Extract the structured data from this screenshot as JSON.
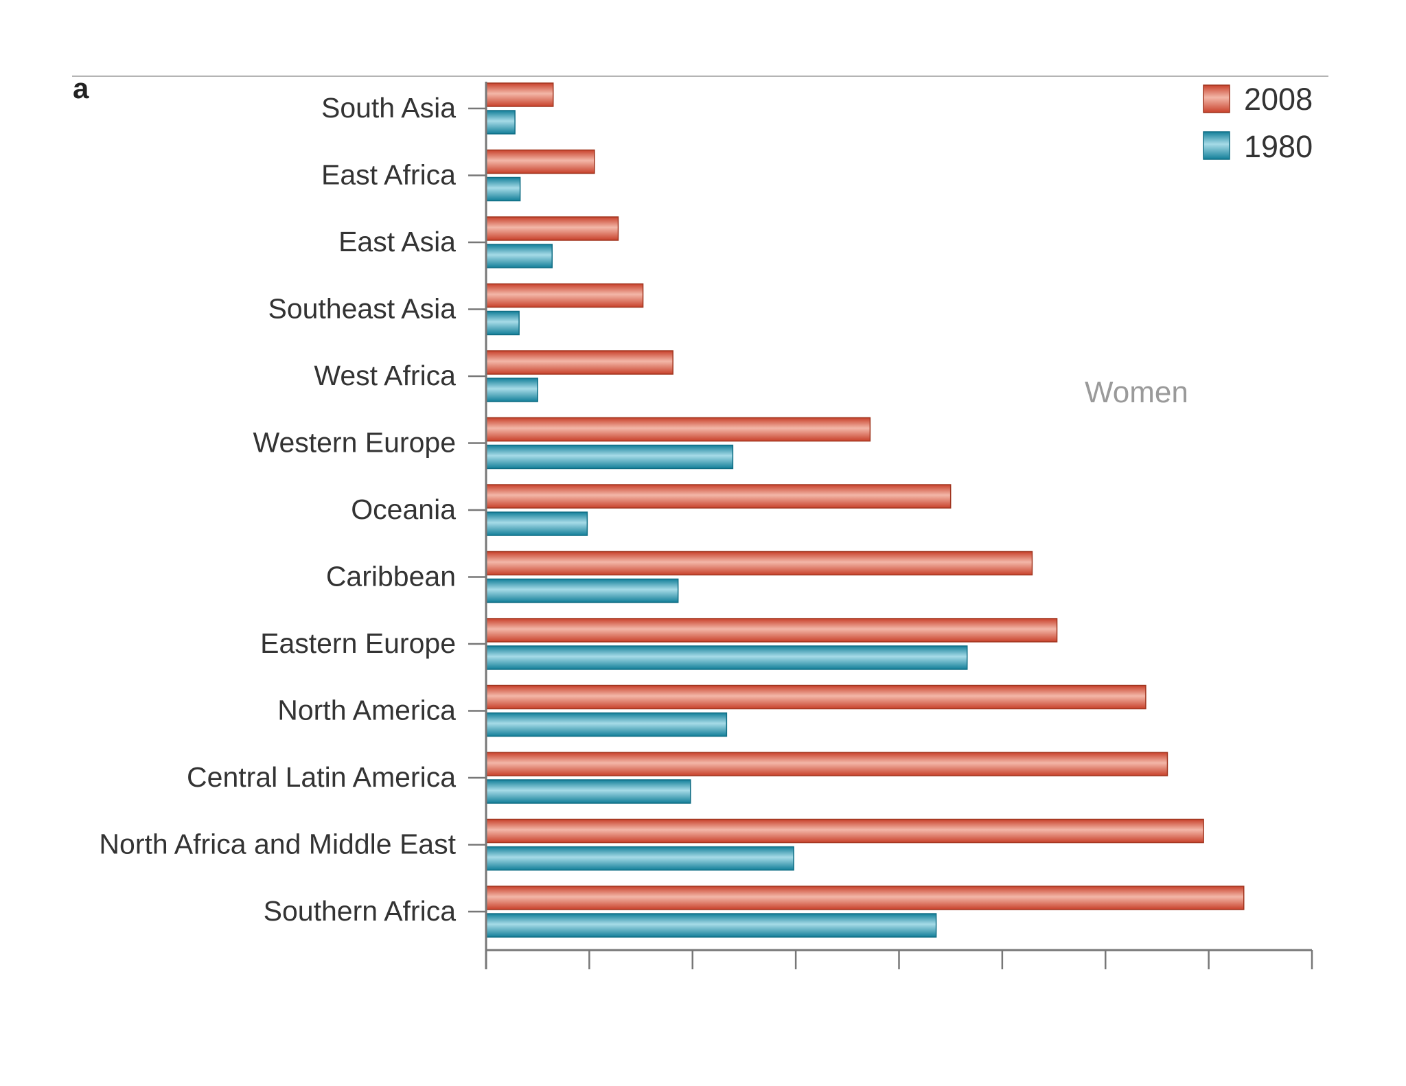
{
  "chart_data": {
    "type": "bar",
    "orientation": "horizontal",
    "panel_label": "a",
    "annotation": "Women",
    "categories": [
      "South Asia",
      "East Africa",
      "East Asia",
      "Southeast Asia",
      "West Africa",
      "Western Europe",
      "Oceania",
      "Caribbean",
      "Eastern Europe",
      "North America",
      "Central Latin America",
      "North Africa and Middle East",
      "Southern Africa"
    ],
    "series": [
      {
        "name": "2008",
        "color": "#d9533c",
        "values": [
          0.65,
          1.05,
          1.28,
          1.52,
          1.81,
          3.72,
          4.5,
          5.29,
          5.53,
          6.39,
          6.6,
          6.95,
          7.34
        ]
      },
      {
        "name": "1980",
        "color": "#1e93ad",
        "values": [
          0.28,
          0.33,
          0.64,
          0.32,
          0.5,
          2.39,
          0.98,
          1.86,
          4.66,
          2.33,
          1.98,
          2.98,
          4.36
        ]
      }
    ],
    "xlim": [
      0,
      8
    ],
    "x_ticks": [
      0,
      1,
      2,
      3,
      4,
      5,
      6,
      7,
      8
    ],
    "x_tick_labels_shown": false,
    "legend": "top-right",
    "xlabel": "",
    "ylabel": ""
  }
}
